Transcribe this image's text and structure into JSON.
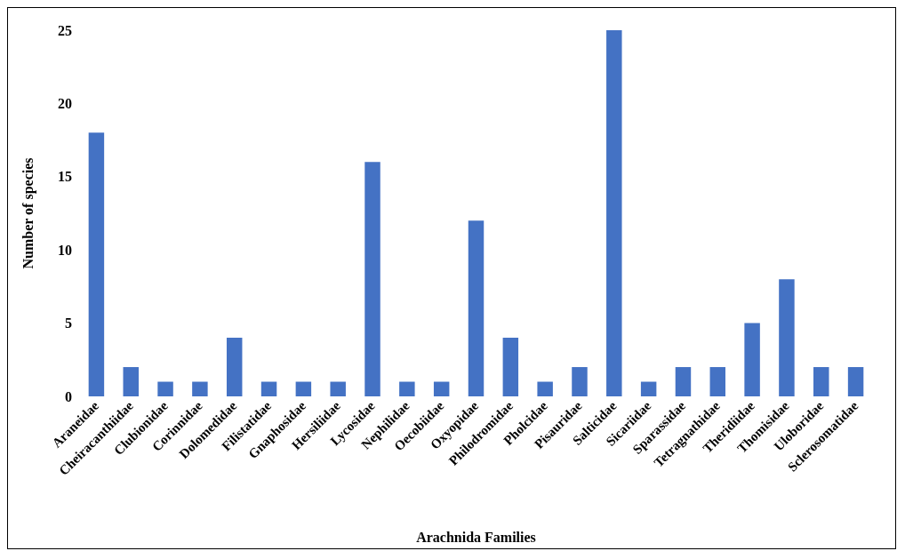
{
  "chart_data": {
    "type": "bar",
    "xlabel": "Arachnida Families",
    "ylabel": "Number of species",
    "categories": [
      "Araneidae",
      "Cheiracanthiidae",
      "Clubionidae",
      "Corinnidae",
      "Dolomedidae",
      "Filistatidae",
      "Gnaphosidae",
      "Hersiliidae",
      "Lycosidae",
      "Nephilidae",
      "Oecobiidae",
      "Oxyopidae",
      "Philodromidae",
      "Pholcidae",
      "Pisauridae",
      "Salticidae",
      "Sicariidae",
      "Sparassidae",
      "Tetragnathidae",
      "Theridiidae",
      "Thomisidae",
      "Uloboridae",
      "Sclerosomatidae"
    ],
    "values": [
      18,
      2,
      1,
      1,
      4,
      1,
      1,
      1,
      16,
      1,
      1,
      12,
      4,
      1,
      2,
      25,
      1,
      2,
      2,
      5,
      8,
      2,
      2
    ],
    "color": "#4472c4",
    "ylim": [
      0,
      25
    ],
    "yticks": [
      0,
      5,
      10,
      15,
      20,
      25
    ],
    "grid": false
  }
}
